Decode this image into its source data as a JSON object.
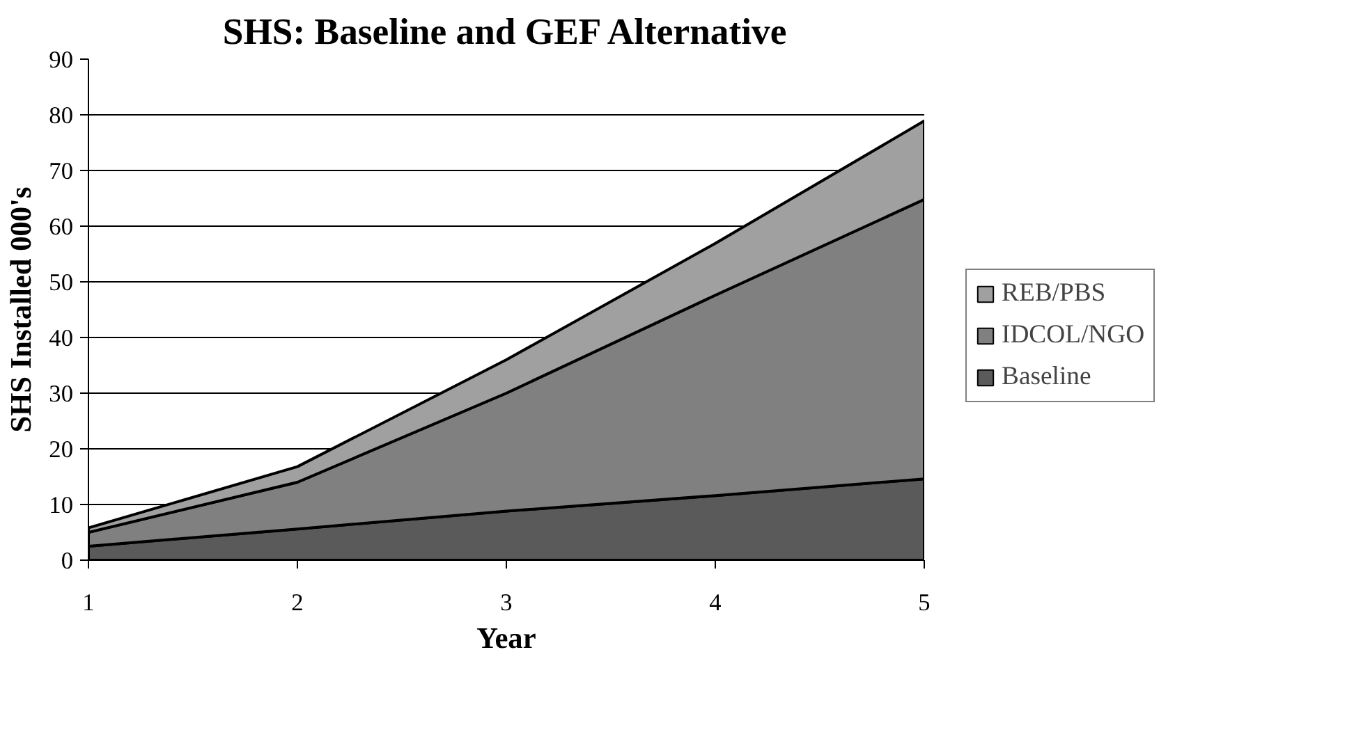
{
  "chart_data": {
    "type": "area",
    "title": "SHS: Baseline and GEF Alternative",
    "xlabel": "Year",
    "ylabel": "SHS Installed 000's",
    "stacked": true,
    "x": [
      1,
      2,
      3,
      4,
      5
    ],
    "xlim": [
      1,
      5
    ],
    "xticks": [
      1,
      2,
      3,
      4,
      5
    ],
    "ylim": [
      0,
      90
    ],
    "yticks": [
      0,
      10,
      20,
      30,
      40,
      50,
      60,
      70,
      80,
      90
    ],
    "grid": "y",
    "legend": "right",
    "series": [
      {
        "name": "Baseline",
        "color": "#5a5a5a",
        "values": [
          2.5,
          5.6,
          8.8,
          11.6,
          14.6
        ]
      },
      {
        "name": "IDCOL/NGO",
        "color": "#808080",
        "values": [
          2.5,
          8.4,
          21.2,
          36,
          50.2
        ]
      },
      {
        "name": "REB/PBS",
        "color": "#a0a0a0",
        "values": [
          0.8,
          2.8,
          6,
          9.3,
          14.1
        ]
      }
    ]
  }
}
